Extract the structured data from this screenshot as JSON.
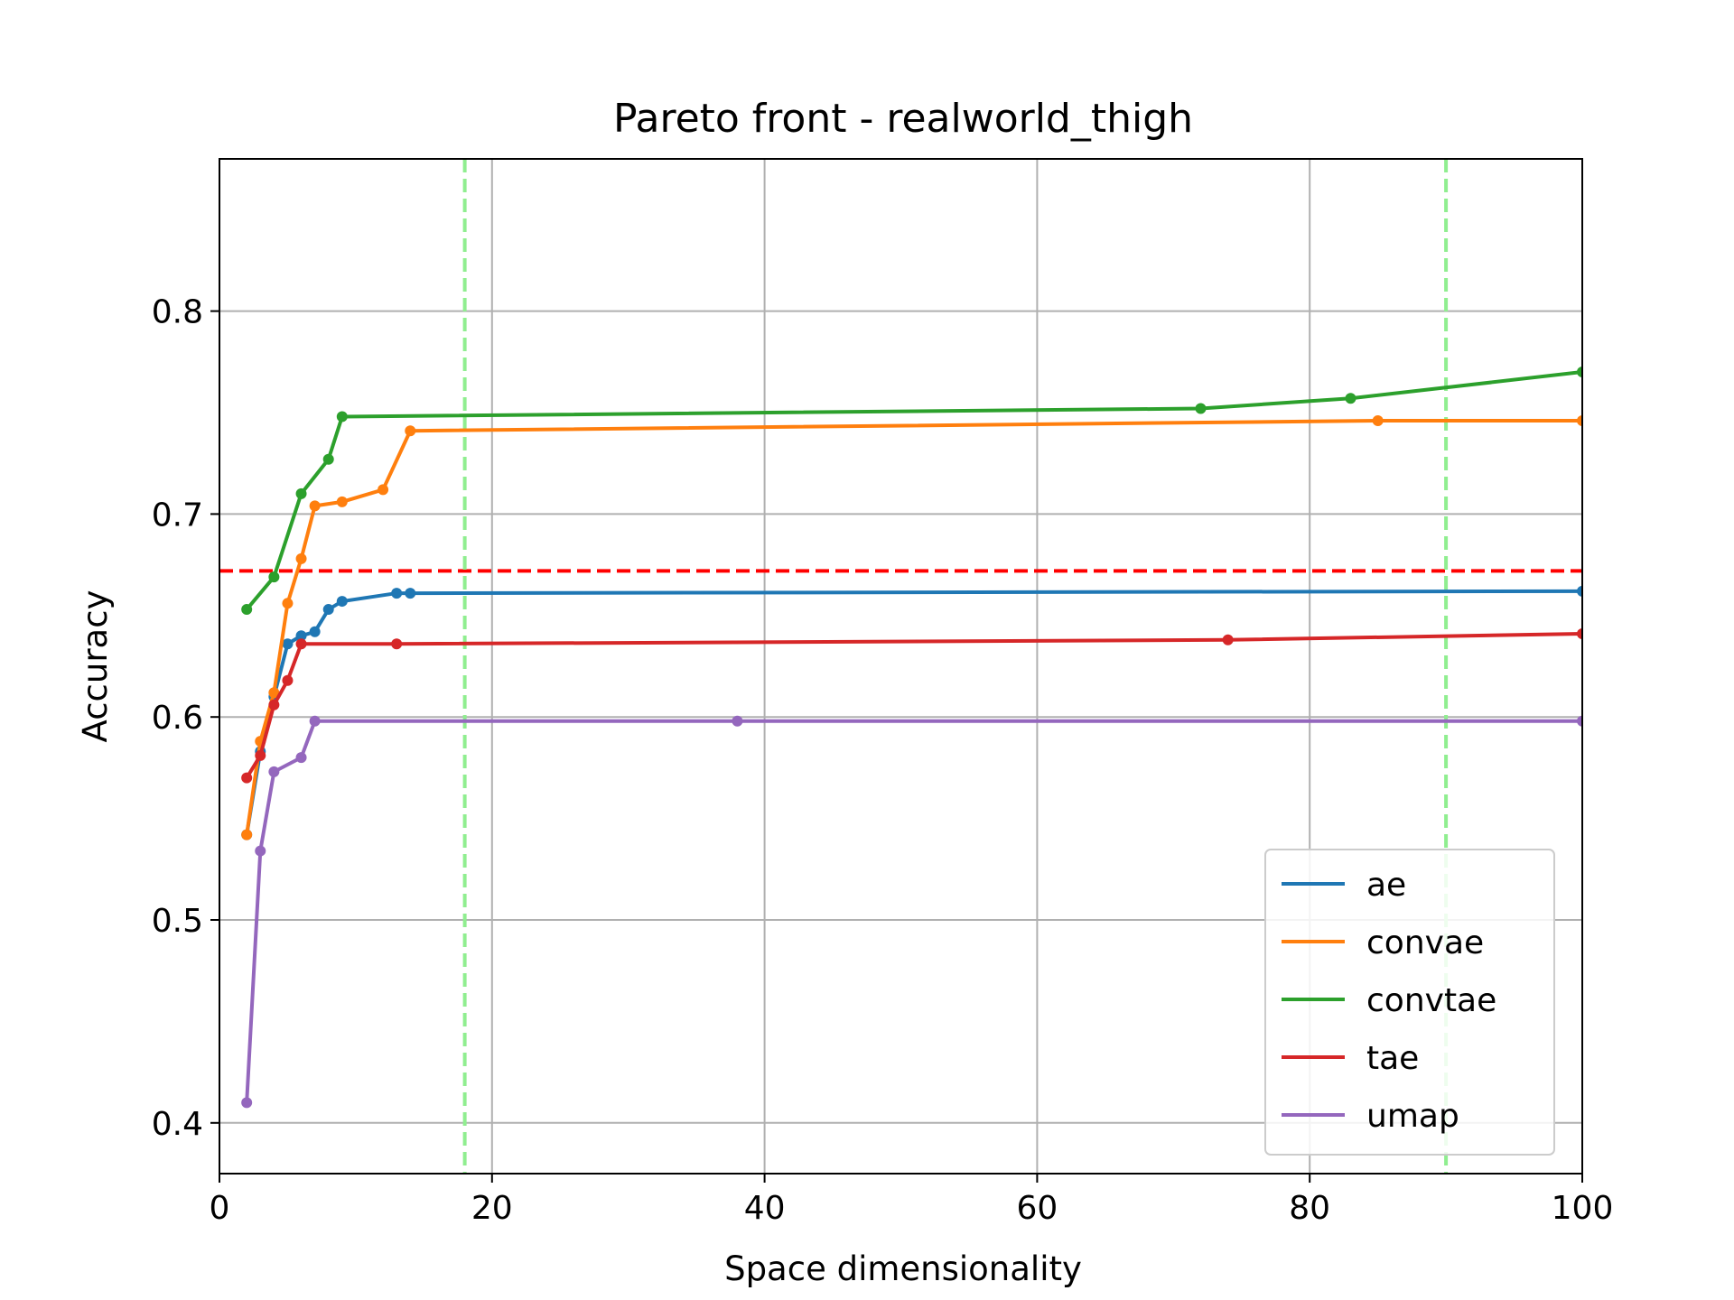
{
  "chart_data": {
    "type": "line",
    "title": "Pareto front - realworld_thigh",
    "xlabel": "Space dimensionality",
    "ylabel": "Accuracy",
    "xlim": [
      0,
      100
    ],
    "ylim": [
      0.375,
      0.875
    ],
    "xticks": [
      0,
      20,
      40,
      60,
      80,
      100
    ],
    "xtick_labels": [
      "0",
      "20",
      "40",
      "60",
      "80",
      "100"
    ],
    "yticks": [
      0.4,
      0.5,
      0.6,
      0.7,
      0.8
    ],
    "ytick_labels": [
      "0.4",
      "0.5",
      "0.6",
      "0.7",
      "0.8"
    ],
    "grid": true,
    "legend_position": "lower-right",
    "reference_lines": [
      {
        "orientation": "horizontal",
        "value": 0.672,
        "color": "#ff0000",
        "style": "dashed"
      },
      {
        "orientation": "vertical",
        "value": 18,
        "color": "#90ee90",
        "style": "dashed"
      },
      {
        "orientation": "vertical",
        "value": 90,
        "color": "#90ee90",
        "style": "dashed"
      }
    ],
    "series": [
      {
        "name": "ae",
        "color": "#1f77b4",
        "x": [
          2,
          3,
          4,
          5,
          6,
          7,
          8,
          9,
          13,
          14,
          100
        ],
        "y": [
          0.542,
          0.583,
          0.61,
          0.636,
          0.64,
          0.642,
          0.653,
          0.657,
          0.661,
          0.661,
          0.662
        ]
      },
      {
        "name": "convae",
        "color": "#ff7f0e",
        "x": [
          2,
          3,
          4,
          5,
          6,
          7,
          9,
          12,
          14,
          85,
          100
        ],
        "y": [
          0.542,
          0.588,
          0.612,
          0.656,
          0.678,
          0.704,
          0.706,
          0.712,
          0.741,
          0.746,
          0.746
        ]
      },
      {
        "name": "convtae",
        "color": "#2ca02c",
        "x": [
          2,
          4,
          6,
          8,
          9,
          72,
          83,
          100
        ],
        "y": [
          0.653,
          0.669,
          0.71,
          0.727,
          0.748,
          0.752,
          0.757,
          0.77
        ]
      },
      {
        "name": "tae",
        "color": "#d62728",
        "x": [
          2,
          3,
          4,
          5,
          6,
          13,
          74,
          100
        ],
        "y": [
          0.57,
          0.581,
          0.606,
          0.618,
          0.636,
          0.636,
          0.638,
          0.641
        ]
      },
      {
        "name": "umap",
        "color": "#9467bd",
        "x": [
          2,
          3,
          4,
          6,
          7,
          38,
          100
        ],
        "y": [
          0.41,
          0.534,
          0.573,
          0.58,
          0.598,
          0.598,
          0.598
        ]
      }
    ]
  }
}
